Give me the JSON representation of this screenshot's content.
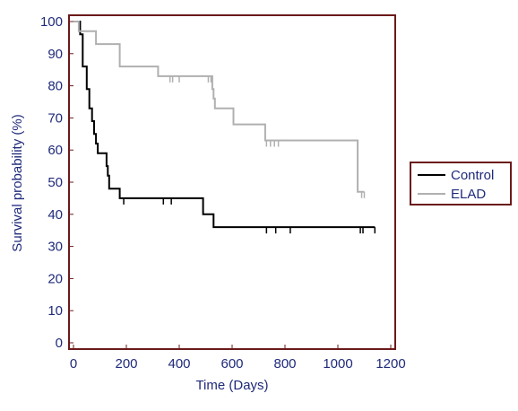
{
  "chart_data": {
    "type": "line",
    "step": true,
    "title": "",
    "xlabel": "Time (Days)",
    "ylabel": "Survival probability (%)",
    "xlim": [
      0,
      1200
    ],
    "ylim": [
      0,
      100
    ],
    "x_ticks": [
      0,
      200,
      400,
      600,
      800,
      1000,
      1200
    ],
    "y_ticks": [
      0,
      10,
      20,
      30,
      40,
      50,
      60,
      70,
      80,
      90,
      100
    ],
    "grid": false,
    "legend_position": "right",
    "frame_color": "#6b1a1a",
    "series": [
      {
        "name": "Control",
        "color": "#000000",
        "points": [
          [
            0,
            100
          ],
          [
            25,
            100
          ],
          [
            25,
            96
          ],
          [
            35,
            96
          ],
          [
            35,
            86
          ],
          [
            50,
            86
          ],
          [
            50,
            79
          ],
          [
            60,
            79
          ],
          [
            60,
            73
          ],
          [
            70,
            73
          ],
          [
            70,
            69
          ],
          [
            78,
            69
          ],
          [
            78,
            65
          ],
          [
            85,
            65
          ],
          [
            85,
            62
          ],
          [
            92,
            62
          ],
          [
            92,
            59
          ],
          [
            125,
            59
          ],
          [
            125,
            55
          ],
          [
            130,
            55
          ],
          [
            130,
            52
          ],
          [
            135,
            52
          ],
          [
            135,
            48
          ],
          [
            175,
            48
          ],
          [
            175,
            45
          ],
          [
            490,
            45
          ],
          [
            490,
            40
          ],
          [
            530,
            40
          ],
          [
            530,
            36
          ],
          [
            1140,
            36
          ]
        ],
        "censored": [
          190,
          340,
          370,
          730,
          765,
          820,
          1085,
          1095,
          1140
        ]
      },
      {
        "name": "ELAD",
        "color": "#b0b0b0",
        "points": [
          [
            0,
            100
          ],
          [
            20,
            100
          ],
          [
            20,
            97
          ],
          [
            85,
            97
          ],
          [
            85,
            93
          ],
          [
            175,
            93
          ],
          [
            175,
            86
          ],
          [
            320,
            86
          ],
          [
            320,
            83
          ],
          [
            525,
            83
          ],
          [
            525,
            79
          ],
          [
            530,
            79
          ],
          [
            530,
            76
          ],
          [
            535,
            76
          ],
          [
            535,
            73
          ],
          [
            545,
            73
          ],
          [
            545,
            73
          ],
          [
            605,
            73
          ],
          [
            605,
            68
          ],
          [
            725,
            68
          ],
          [
            725,
            63
          ],
          [
            1075,
            63
          ],
          [
            1075,
            47
          ],
          [
            1100,
            47
          ]
        ],
        "censored": [
          365,
          375,
          400,
          510,
          520,
          730,
          745,
          760,
          775,
          1090,
          1100
        ]
      }
    ]
  }
}
